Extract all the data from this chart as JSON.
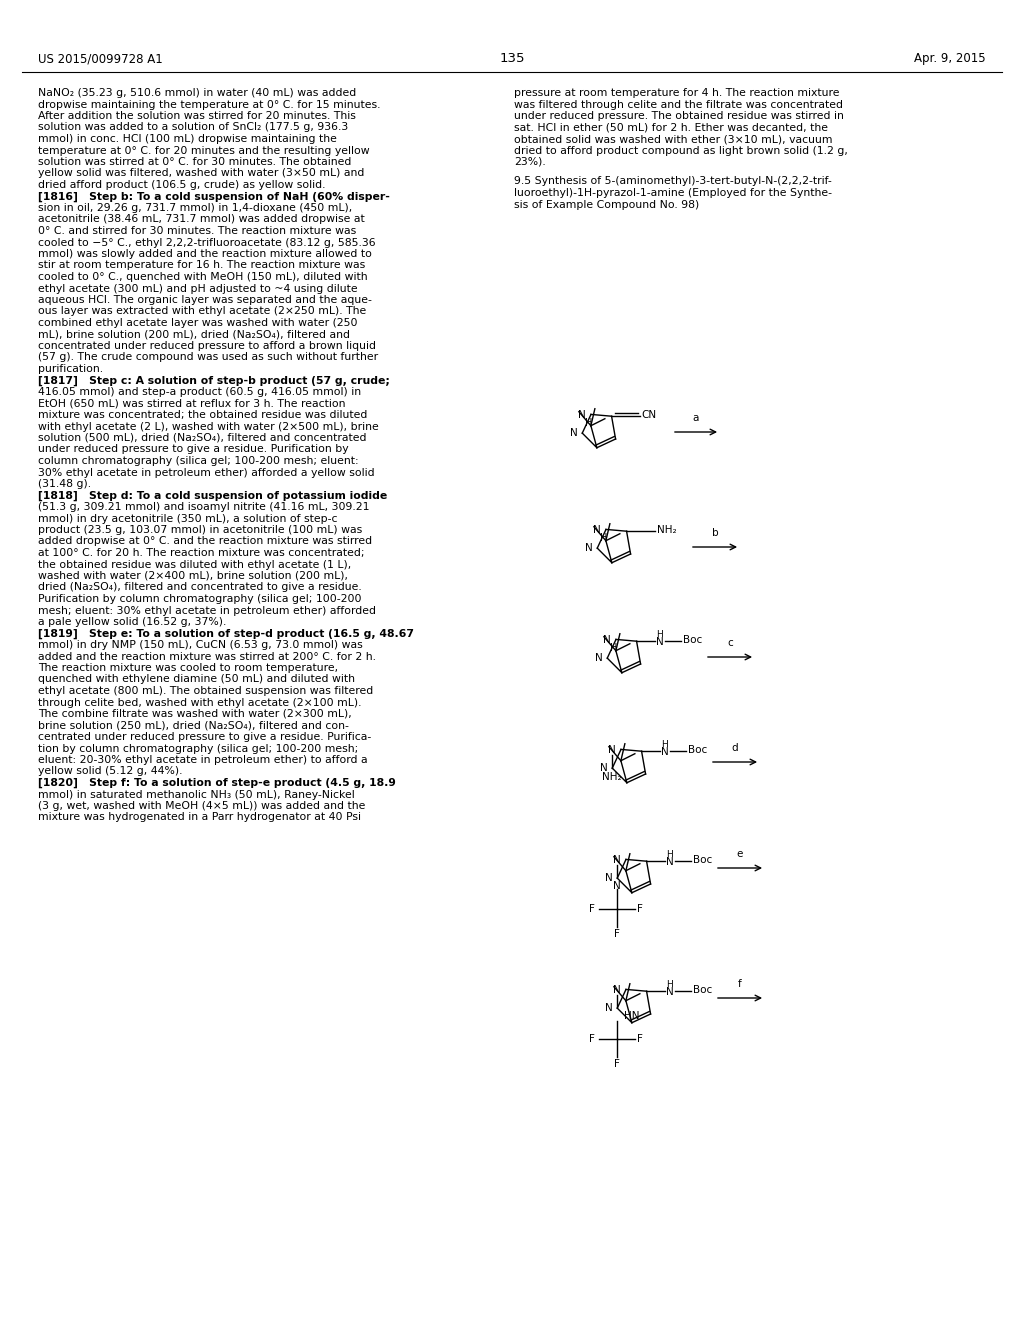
{
  "page_header_left": "US 2015/0099728 A1",
  "page_header_right": "Apr. 9, 2015",
  "page_number": "135",
  "background_color": "#ffffff",
  "text_color": "#000000",
  "left_col_lines": [
    "NaNO₂ (35.23 g, 510.6 mmol) in water (40 mL) was added",
    "dropwise maintaining the temperature at 0° C. for 15 minutes.",
    "After addition the solution was stirred for 20 minutes. This",
    "solution was added to a solution of SnCl₂ (177.5 g, 936.3",
    "mmol) in conc. HCl (100 mL) dropwise maintaining the",
    "temperature at 0° C. for 20 minutes and the resulting yellow",
    "solution was stirred at 0° C. for 30 minutes. The obtained",
    "yellow solid was filtered, washed with water (3×50 mL) and",
    "dried afford product (106.5 g, crude) as yellow solid.",
    "[1816]   Step b: To a cold suspension of NaH (60% disper-",
    "sion in oil, 29.26 g, 731.7 mmol) in 1,4-dioxane (450 mL),",
    "acetonitrile (38.46 mL, 731.7 mmol) was added dropwise at",
    "0° C. and stirred for 30 minutes. The reaction mixture was",
    "cooled to −5° C., ethyl 2,2,2-trifluoroacetate (83.12 g, 585.36",
    "mmol) was slowly added and the reaction mixture allowed to",
    "stir at room temperature for 16 h. The reaction mixture was",
    "cooled to 0° C., quenched with MeOH (150 mL), diluted with",
    "ethyl acetate (300 mL) and pH adjusted to ~4 using dilute",
    "aqueous HCl. The organic layer was separated and the aque-",
    "ous layer was extracted with ethyl acetate (2×250 mL). The",
    "combined ethyl acetate layer was washed with water (250",
    "mL), brine solution (200 mL), dried (Na₂SO₄), filtered and",
    "concentrated under reduced pressure to afford a brown liquid",
    "(57 g). The crude compound was used as such without further",
    "purification.",
    "[1817]   Step c: A solution of step-b product (57 g, crude;",
    "416.05 mmol) and step-a product (60.5 g, 416.05 mmol) in",
    "EtOH (650 mL) was stirred at reflux for 3 h. The reaction",
    "mixture was concentrated; the obtained residue was diluted",
    "with ethyl acetate (2 L), washed with water (2×500 mL), brine",
    "solution (500 mL), dried (Na₂SO₄), filtered and concentrated",
    "under reduced pressure to give a residue. Purification by",
    "column chromatography (silica gel; 100-200 mesh; eluent:",
    "30% ethyl acetate in petroleum ether) afforded a yellow solid",
    "(31.48 g).",
    "[1818]   Step d: To a cold suspension of potassium iodide",
    "(51.3 g, 309.21 mmol) and isoamyl nitrite (41.16 mL, 309.21",
    "mmol) in dry acetonitrile (350 mL), a solution of step-c",
    "product (23.5 g, 103.07 mmol) in acetonitrile (100 mL) was",
    "added dropwise at 0° C. and the reaction mixture was stirred",
    "at 100° C. for 20 h. The reaction mixture was concentrated;",
    "the obtained residue was diluted with ethyl acetate (1 L),",
    "washed with water (2×400 mL), brine solution (200 mL),",
    "dried (Na₂SO₄), filtered and concentrated to give a residue.",
    "Purification by column chromatography (silica gel; 100-200",
    "mesh; eluent: 30% ethyl acetate in petroleum ether) afforded",
    "a pale yellow solid (16.52 g, 37%).",
    "[1819]   Step e: To a solution of step-d product (16.5 g, 48.67",
    "mmol) in dry NMP (150 mL), CuCN (6.53 g, 73.0 mmol) was",
    "added and the reaction mixture was stirred at 200° C. for 2 h.",
    "The reaction mixture was cooled to room temperature,",
    "quenched with ethylene diamine (50 mL) and diluted with",
    "ethyl acetate (800 mL). The obtained suspension was filtered",
    "through celite bed, washed with ethyl acetate (2×100 mL).",
    "The combine filtrate was washed with water (2×300 mL),",
    "brine solution (250 mL), dried (Na₂SO₄), filtered and con-",
    "centrated under reduced pressure to give a residue. Purifica-",
    "tion by column chromatography (silica gel; 100-200 mesh;",
    "eluent: 20-30% ethyl acetate in petroleum ether) to afford a",
    "yellow solid (5.12 g, 44%).",
    "[1820]   Step f: To a solution of step-e product (4.5 g, 18.9",
    "mmol) in saturated methanolic NH₃ (50 mL), Raney-Nickel",
    "(3 g, wet, washed with MeOH (4×5 mL)) was added and the",
    "mixture was hydrogenated in a Parr hydrogenator at 40 Psi"
  ],
  "right_col_lines": [
    "pressure at room temperature for 4 h. The reaction mixture",
    "was filtered through celite and the filtrate was concentrated",
    "under reduced pressure. The obtained residue was stirred in",
    "sat. HCl in ether (50 mL) for 2 h. Ether was decanted, the",
    "obtained solid was washed with ether (3×10 mL), vacuum",
    "dried to afford product compound as light brown solid (1.2 g,",
    "23%)."
  ],
  "section_title_lines": [
    "9.5 Synthesis of 5-(aminomethyl)-3-tert-butyl-N-(2,2,2-trif-",
    "luoroethyl)-1H-pyrazol-1-amine (Employed for the Synthe-",
    "sis of Example Compound No. 98)"
  ]
}
